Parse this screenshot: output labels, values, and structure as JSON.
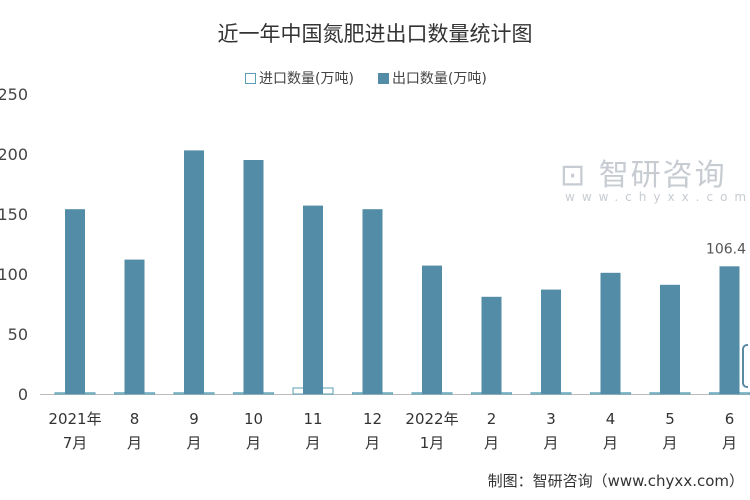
{
  "chart_data": {
    "type": "bar",
    "title": "近一年中国氮肥进出口数量统计图",
    "categories": [
      [
        "2021年",
        "7月"
      ],
      [
        "8",
        "月"
      ],
      [
        "9",
        "月"
      ],
      [
        "10",
        "月"
      ],
      [
        "11",
        "月"
      ],
      [
        "12",
        "月"
      ],
      [
        "2022年",
        "1月"
      ],
      [
        "2",
        "月"
      ],
      [
        "3",
        "月"
      ],
      [
        "4",
        "月"
      ],
      [
        "5",
        "月"
      ],
      [
        "6",
        "月"
      ]
    ],
    "series": [
      {
        "name": "进口数量(万吨)",
        "values": [
          1,
          1,
          1,
          1,
          5,
          1,
          1,
          1,
          1,
          1,
          1,
          1
        ],
        "color": "#ffffff",
        "stroke": "#5a9fb5"
      },
      {
        "name": "出口数量(万吨)",
        "values": [
          154,
          112,
          203,
          195,
          157,
          154,
          107,
          81,
          87,
          101,
          91,
          106.4
        ],
        "color": "#528ca6"
      }
    ],
    "data_labels": [
      {
        "index": 11,
        "text": "106.4"
      }
    ],
    "yticks": [
      "0",
      "50",
      "100",
      "150",
      "200",
      "250"
    ],
    "ylim": [
      0,
      250
    ],
    "grid": false,
    "legend": "top"
  },
  "source": "制图：智研咨询（www.chyxx.com）",
  "watermark": {
    "text": "智研咨询",
    "url": "www.chyxx.com"
  }
}
